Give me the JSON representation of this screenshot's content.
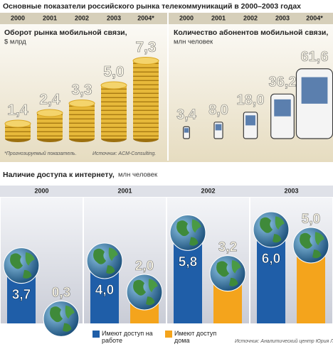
{
  "title": "Основные показатели российского рынка телекоммуникаций в 2000–2003 годах",
  "chart_data": [
    {
      "type": "coins",
      "title": "Оборот рынка мобильной связи,",
      "subtitle": "$ млрд",
      "categories": [
        "2000",
        "2001",
        "2002",
        "2003",
        "2004*"
      ],
      "values": [
        1.4,
        2.4,
        3.3,
        5.0,
        7.3
      ],
      "value_labels": [
        "1,4",
        "2,4",
        "3,3",
        "5,0",
        "7,3"
      ],
      "color": "#dba825"
    },
    {
      "type": "phones",
      "title": "Количество абонентов мобильной связи,",
      "subtitle": "млн человек",
      "categories": [
        "2000",
        "2001",
        "2002",
        "2003",
        "2004*"
      ],
      "values": [
        3.4,
        8.0,
        18.0,
        36.2,
        61.6
      ],
      "value_labels": [
        "3,4",
        "8,0",
        "18,0",
        "36,2",
        "61,6"
      ],
      "color": "#3a3a3a"
    },
    {
      "type": "bar",
      "title": "Наличие доступа к интернету,",
      "subtitle": "млн человек",
      "categories": [
        "2000",
        "2001",
        "2002",
        "2003"
      ],
      "series": [
        {
          "name": "Имеют доступ на работе",
          "color": "#1f5ea8",
          "values": [
            3.7,
            4.0,
            5.8,
            6.0
          ],
          "value_labels": [
            "3,7",
            "4,0",
            "5,8",
            "6,0"
          ]
        },
        {
          "name": "Имеют доступ дома",
          "color": "#f4a41c",
          "values": [
            0.3,
            2.0,
            3.2,
            5.0
          ],
          "value_labels": [
            "0,3",
            "2,0",
            "3,2",
            "5,0"
          ]
        }
      ]
    }
  ],
  "footnote": "*Прогнозируемый показатель.",
  "source_top": "Источник: ACM-Consulting.",
  "source_bottom": "Источник: Аналитический центр Юрия Левады."
}
